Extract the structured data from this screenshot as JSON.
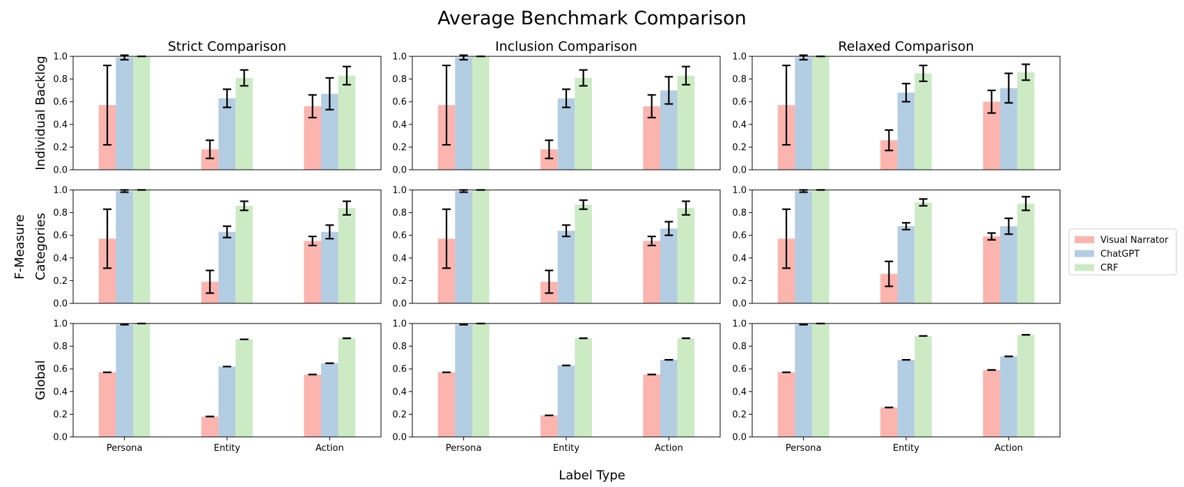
{
  "title": "Average Benchmark Comparison",
  "xlabel": "Label Type",
  "ylabel": "F-Measure",
  "legend": {
    "placement": "right",
    "entries": [
      {
        "name": "Visual Narrator",
        "color": "#fbb4ae"
      },
      {
        "name": "ChatGPT",
        "color": "#b3cde3"
      },
      {
        "name": "CRF",
        "color": "#ccebc5"
      }
    ]
  },
  "chart_data": {
    "type": "bar",
    "layout": "3x3 grid",
    "column_titles": [
      "Strict Comparison",
      "Inclusion Comparison",
      "Relaxed Comparison"
    ],
    "row_labels": [
      "Individual Backlog",
      "Categories",
      "Global"
    ],
    "categories": [
      "Persona",
      "Entity",
      "Action"
    ],
    "ylim": [
      0,
      1.0
    ],
    "yticks": [
      "0.0",
      "0.2",
      "0.4",
      "0.6",
      "0.8",
      "1.0"
    ],
    "series_names": [
      "Visual Narrator",
      "ChatGPT",
      "CRF"
    ],
    "panels": [
      [
        {
          "row": "Individual Backlog",
          "column": "Strict Comparison",
          "series": [
            {
              "name": "Visual Narrator",
              "values": [
                0.57,
                0.18,
                0.56
              ],
              "err": [
                0.35,
                0.08,
                0.1
              ]
            },
            {
              "name": "ChatGPT",
              "values": [
                0.99,
                0.63,
                0.67
              ],
              "err": [
                0.02,
                0.08,
                0.14
              ]
            },
            {
              "name": "CRF",
              "values": [
                1.0,
                0.81,
                0.83
              ],
              "err": [
                0.0,
                0.07,
                0.08
              ]
            }
          ]
        },
        {
          "row": "Individual Backlog",
          "column": "Inclusion Comparison",
          "series": [
            {
              "name": "Visual Narrator",
              "values": [
                0.57,
                0.18,
                0.56
              ],
              "err": [
                0.35,
                0.08,
                0.1
              ]
            },
            {
              "name": "ChatGPT",
              "values": [
                0.99,
                0.63,
                0.7
              ],
              "err": [
                0.02,
                0.08,
                0.12
              ]
            },
            {
              "name": "CRF",
              "values": [
                1.0,
                0.81,
                0.83
              ],
              "err": [
                0.0,
                0.07,
                0.08
              ]
            }
          ]
        },
        {
          "row": "Individual Backlog",
          "column": "Relaxed Comparison",
          "series": [
            {
              "name": "Visual Narrator",
              "values": [
                0.57,
                0.26,
                0.6
              ],
              "err": [
                0.35,
                0.09,
                0.1
              ]
            },
            {
              "name": "ChatGPT",
              "values": [
                0.99,
                0.68,
                0.72
              ],
              "err": [
                0.02,
                0.08,
                0.13
              ]
            },
            {
              "name": "CRF",
              "values": [
                1.0,
                0.85,
                0.86
              ],
              "err": [
                0.0,
                0.07,
                0.07
              ]
            }
          ]
        }
      ],
      [
        {
          "row": "Categories",
          "column": "Strict Comparison",
          "series": [
            {
              "name": "Visual Narrator",
              "values": [
                0.57,
                0.19,
                0.55
              ],
              "err": [
                0.26,
                0.1,
                0.04
              ]
            },
            {
              "name": "ChatGPT",
              "values": [
                0.99,
                0.63,
                0.63
              ],
              "err": [
                0.01,
                0.05,
                0.06
              ]
            },
            {
              "name": "CRF",
              "values": [
                1.0,
                0.86,
                0.84
              ],
              "err": [
                0.0,
                0.04,
                0.06
              ]
            }
          ]
        },
        {
          "row": "Categories",
          "column": "Inclusion Comparison",
          "series": [
            {
              "name": "Visual Narrator",
              "values": [
                0.57,
                0.19,
                0.55
              ],
              "err": [
                0.26,
                0.1,
                0.04
              ]
            },
            {
              "name": "ChatGPT",
              "values": [
                0.99,
                0.64,
                0.66
              ],
              "err": [
                0.01,
                0.05,
                0.06
              ]
            },
            {
              "name": "CRF",
              "values": [
                1.0,
                0.87,
                0.84
              ],
              "err": [
                0.0,
                0.04,
                0.06
              ]
            }
          ]
        },
        {
          "row": "Categories",
          "column": "Relaxed Comparison",
          "series": [
            {
              "name": "Visual Narrator",
              "values": [
                0.57,
                0.26,
                0.59
              ],
              "err": [
                0.26,
                0.11,
                0.03
              ]
            },
            {
              "name": "ChatGPT",
              "values": [
                0.99,
                0.68,
                0.68
              ],
              "err": [
                0.01,
                0.03,
                0.07
              ]
            },
            {
              "name": "CRF",
              "values": [
                1.0,
                0.89,
                0.88
              ],
              "err": [
                0.0,
                0.03,
                0.06
              ]
            }
          ]
        }
      ],
      [
        {
          "row": "Global",
          "column": "Strict Comparison",
          "series": [
            {
              "name": "Visual Narrator",
              "values": [
                0.57,
                0.18,
                0.55
              ],
              "err": [
                0.0,
                0.0,
                0.0
              ]
            },
            {
              "name": "ChatGPT",
              "values": [
                0.99,
                0.62,
                0.65
              ],
              "err": [
                0.0,
                0.0,
                0.0
              ]
            },
            {
              "name": "CRF",
              "values": [
                1.0,
                0.86,
                0.87
              ],
              "err": [
                0.0,
                0.0,
                0.0
              ]
            }
          ]
        },
        {
          "row": "Global",
          "column": "Inclusion Comparison",
          "series": [
            {
              "name": "Visual Narrator",
              "values": [
                0.57,
                0.19,
                0.55
              ],
              "err": [
                0.0,
                0.0,
                0.0
              ]
            },
            {
              "name": "ChatGPT",
              "values": [
                0.99,
                0.63,
                0.68
              ],
              "err": [
                0.0,
                0.0,
                0.0
              ]
            },
            {
              "name": "CRF",
              "values": [
                1.0,
                0.87,
                0.87
              ],
              "err": [
                0.0,
                0.0,
                0.0
              ]
            }
          ]
        },
        {
          "row": "Global",
          "column": "Relaxed Comparison",
          "series": [
            {
              "name": "Visual Narrator",
              "values": [
                0.57,
                0.26,
                0.59
              ],
              "err": [
                0.0,
                0.0,
                0.0
              ]
            },
            {
              "name": "ChatGPT",
              "values": [
                0.99,
                0.68,
                0.71
              ],
              "err": [
                0.0,
                0.0,
                0.0
              ]
            },
            {
              "name": "CRF",
              "values": [
                1.0,
                0.89,
                0.9
              ],
              "err": [
                0.0,
                0.0,
                0.0
              ]
            }
          ]
        }
      ]
    ]
  }
}
